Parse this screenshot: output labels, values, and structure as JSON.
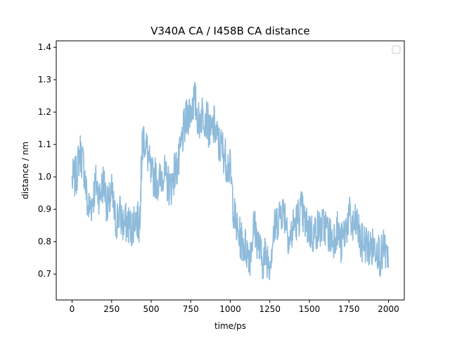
{
  "chart_data": {
    "type": "line",
    "title": "V340A CA / I458B CA distance",
    "xlabel": "time/ps",
    "ylabel": "distance / nm",
    "xlim": [
      -100,
      2100
    ],
    "ylim": [
      0.62,
      1.42
    ],
    "xticks": [
      0,
      250,
      500,
      750,
      1000,
      1250,
      1500,
      1750,
      2000
    ],
    "xtick_labels": [
      "0",
      "250",
      "500",
      "750",
      "1000",
      "1250",
      "1500",
      "1750",
      "2000"
    ],
    "yticks": [
      0.7,
      0.8,
      0.9,
      1.0,
      1.1,
      1.2,
      1.3,
      1.4
    ],
    "ytick_labels": [
      "0.7",
      "0.8",
      "0.9",
      "1.0",
      "1.1",
      "1.2",
      "1.3",
      "1.4"
    ],
    "grid": false,
    "legend": {
      "placement": "top-right",
      "entries": []
    },
    "series": [
      {
        "color": "#8fbbdb",
        "x": [
          0,
          25,
          50,
          75,
          100,
          125,
          150,
          175,
          200,
          225,
          250,
          275,
          300,
          325,
          350,
          375,
          400,
          425,
          440,
          450,
          475,
          500,
          525,
          550,
          575,
          600,
          625,
          650,
          675,
          700,
          725,
          750,
          775,
          800,
          825,
          850,
          875,
          900,
          925,
          950,
          975,
          1000,
          1025,
          1050,
          1075,
          1100,
          1125,
          1150,
          1175,
          1200,
          1225,
          1250,
          1275,
          1300,
          1325,
          1350,
          1375,
          1400,
          1425,
          1450,
          1475,
          1500,
          1525,
          1550,
          1575,
          1600,
          1625,
          1650,
          1675,
          1700,
          1725,
          1750,
          1775,
          1800,
          1825,
          1850,
          1875,
          1900,
          1925,
          1950,
          1975,
          2000
        ],
        "y": [
          0.99,
          1.0,
          1.08,
          1.03,
          0.9,
          0.92,
          0.98,
          0.94,
          0.99,
          0.9,
          0.95,
          0.86,
          0.89,
          0.85,
          0.86,
          0.84,
          0.88,
          0.85,
          1.05,
          1.13,
          1.08,
          1.0,
          1.0,
          0.98,
          1.02,
          0.98,
          0.97,
          1.02,
          1.04,
          1.13,
          1.18,
          1.21,
          1.24,
          1.17,
          1.2,
          1.18,
          1.13,
          1.16,
          1.1,
          1.09,
          1.05,
          1.02,
          0.88,
          0.82,
          0.8,
          0.78,
          0.76,
          0.85,
          0.8,
          0.74,
          0.76,
          0.74,
          0.83,
          0.87,
          0.9,
          0.88,
          0.8,
          0.85,
          0.87,
          0.9,
          0.85,
          0.84,
          0.82,
          0.84,
          0.84,
          0.85,
          0.82,
          0.81,
          0.84,
          0.79,
          0.83,
          0.88,
          0.84,
          0.86,
          0.79,
          0.8,
          0.78,
          0.78,
          0.79,
          0.75,
          0.78,
          0.72
        ]
      }
    ]
  }
}
